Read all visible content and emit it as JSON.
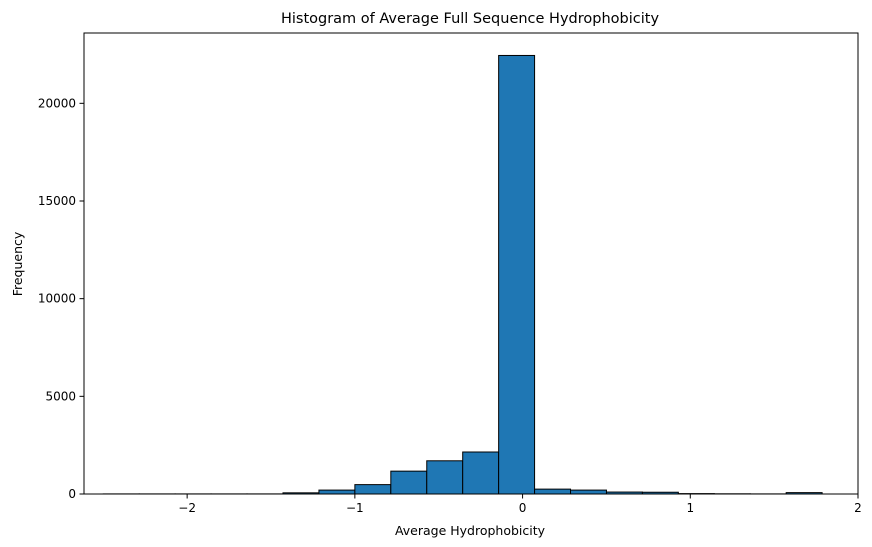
{
  "chart_data": {
    "type": "bar",
    "title": "Histogram of Average Full Sequence Hydrophobicity",
    "xlabel": "Average Hydrophobicity",
    "ylabel": "Frequency",
    "xlim": [
      -2.615,
      2.0
    ],
    "ylim": [
      0,
      23600
    ],
    "xticks": [
      {
        "value": -2,
        "label": "−2"
      },
      {
        "value": -1,
        "label": "−1"
      },
      {
        "value": 0,
        "label": "0"
      },
      {
        "value": 1,
        "label": "1"
      },
      {
        "value": 2,
        "label": "2"
      }
    ],
    "yticks": [
      {
        "value": 0,
        "label": "0"
      },
      {
        "value": 5000,
        "label": "5000"
      },
      {
        "value": 10000,
        "label": "10000"
      },
      {
        "value": 15000,
        "label": "15000"
      },
      {
        "value": 20000,
        "label": "20000"
      }
    ],
    "bins": {
      "start": -2.5,
      "width": 0.2143,
      "counts": [
        5,
        5,
        5,
        5,
        5,
        60,
        200,
        480,
        1170,
        1700,
        2150,
        22450,
        250,
        200,
        100,
        90,
        20,
        10,
        5,
        70
      ]
    },
    "grid": false,
    "legend": false,
    "colors": {
      "bar": "#1f77b4",
      "edge": "#000000"
    }
  }
}
